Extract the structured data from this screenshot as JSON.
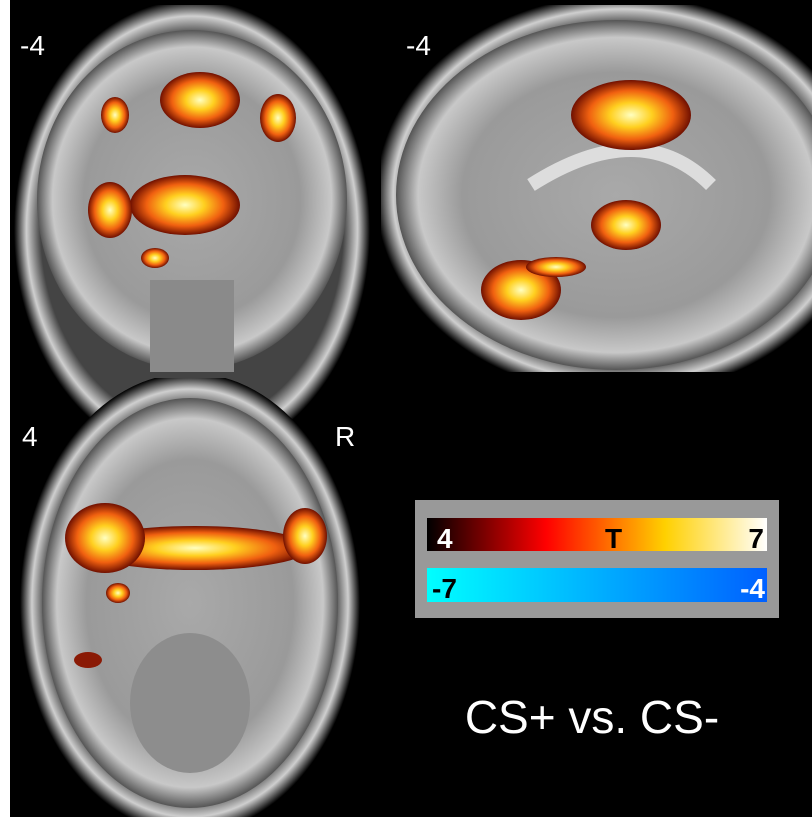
{
  "panels": [
    {
      "label": "-4"
    },
    {
      "label": "-4"
    },
    {
      "label": "4",
      "side_label": "R"
    }
  ],
  "colorbar": {
    "positive": {
      "min": "4",
      "label": "T",
      "max": "7"
    },
    "negative": {
      "min": "-7",
      "max": "-4"
    }
  },
  "caption": "CS+ vs. CS-"
}
